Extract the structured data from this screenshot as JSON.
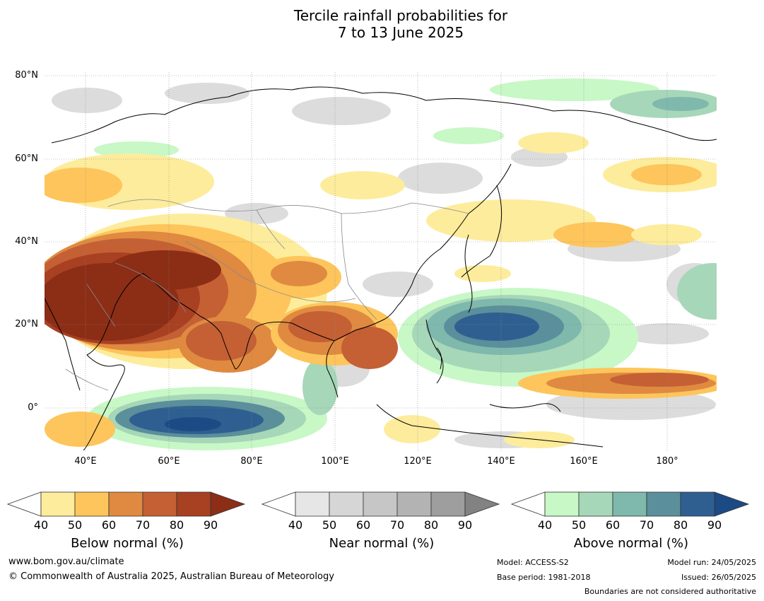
{
  "title_line1": "Tercile rainfall probabilities for",
  "title_line2": "7 to 13 June 2025",
  "lat_labels": [
    "80°N",
    "60°N",
    "40°N",
    "20°N",
    "0°"
  ],
  "lon_labels": [
    "40°E",
    "60°E",
    "80°E",
    "100°E",
    "120°E",
    "140°E",
    "160°E",
    "180°"
  ],
  "colorbars": [
    {
      "label": "Below normal (%)",
      "ticks": [
        "40",
        "50",
        "60",
        "70",
        "80",
        "90"
      ],
      "colors": [
        "#fdec9c",
        "#fdc55b",
        "#df8a40",
        "#c46034",
        "#a84022",
        "#8c2d16"
      ]
    },
    {
      "label": "Near normal (%)",
      "ticks": [
        "40",
        "50",
        "60",
        "70",
        "80",
        "90"
      ],
      "colors": [
        "#e6e6e6",
        "#d6d6d6",
        "#c6c6c6",
        "#b3b3b3",
        "#9e9e9e",
        "#828282"
      ]
    },
    {
      "label": "Above normal (%)",
      "ticks": [
        "40",
        "50",
        "60",
        "70",
        "80",
        "90"
      ],
      "colors": [
        "#c7f8c6",
        "#a6d7b8",
        "#7fb8ac",
        "#5a8f9b",
        "#2f5f91",
        "#1c4a85"
      ]
    }
  ],
  "footer": {
    "website": "www.bom.gov.au/climate",
    "copyright": "© Commonwealth of Australia 2025, Australian Bureau of Meteorology",
    "model": "Model: ACCESS-S2",
    "base_period": "Base period: 1981-2018",
    "model_run": "Model run: 24/05/2025",
    "issued": "Issued: 26/05/2025",
    "disclaimer": "Boundaries are not considered authoritative"
  }
}
